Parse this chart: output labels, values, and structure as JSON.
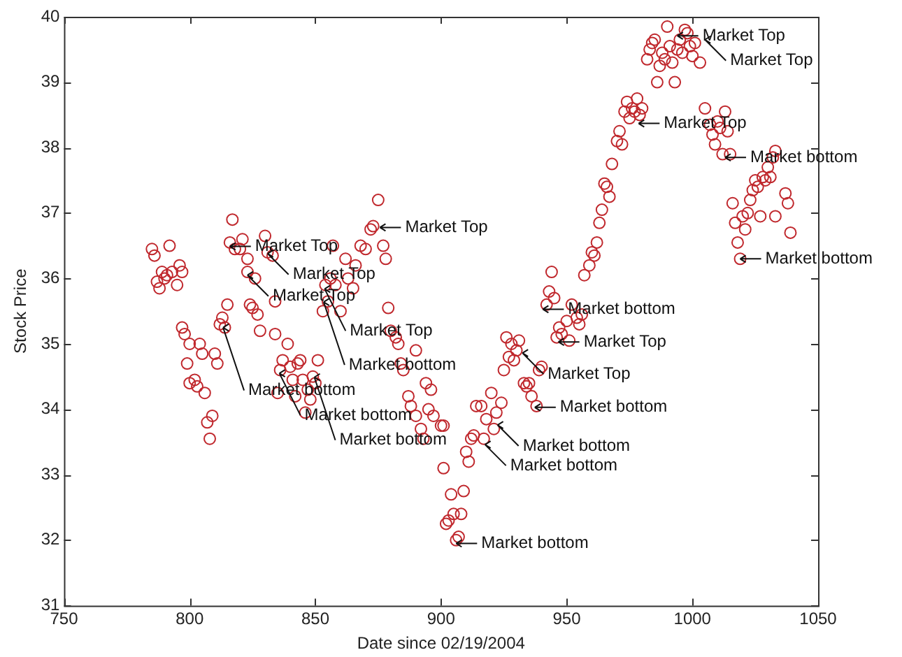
{
  "chart_data": {
    "type": "scatter",
    "xlabel": "Date since 02/19/2004",
    "ylabel": "Stock Price",
    "xlim": [
      750,
      1050
    ],
    "xticks": [
      750,
      800,
      850,
      900,
      950,
      1000,
      1050
    ],
    "ylim": [
      31,
      40
    ],
    "yticks": [
      31,
      32,
      33,
      34,
      35,
      36,
      37,
      38,
      39,
      40
    ],
    "grid": false,
    "legend": false,
    "marker": "circle",
    "series": [
      {
        "color": "#c0282d",
        "x": [
          785,
          786,
          787,
          788,
          789,
          790,
          791,
          792,
          793,
          795,
          796,
          797,
          797,
          798,
          799,
          800,
          800,
          802,
          803,
          804,
          805,
          806,
          807,
          808,
          809,
          810,
          811,
          812,
          813,
          814,
          815,
          816,
          817,
          818,
          820,
          821,
          823,
          823,
          824,
          825,
          826,
          827,
          828,
          830,
          831,
          833,
          834,
          834,
          835,
          836,
          837,
          839,
          840,
          841,
          842,
          843,
          844,
          845,
          846,
          847,
          848,
          849,
          850,
          851,
          853,
          854,
          855,
          856,
          857,
          858,
          860,
          862,
          863,
          865,
          866,
          868,
          870,
          872,
          873,
          875,
          877,
          878,
          879,
          880,
          882,
          883,
          884,
          885,
          887,
          888,
          890,
          890,
          892,
          893,
          894,
          895,
          896,
          897,
          900,
          901,
          901,
          902,
          903,
          904,
          905,
          906,
          907,
          908,
          909,
          910,
          911,
          912,
          913,
          914,
          916,
          917,
          918,
          920,
          921,
          922,
          924,
          925,
          926,
          927,
          928,
          929,
          930,
          931,
          933,
          934,
          935,
          936,
          938,
          939,
          940,
          942,
          943,
          944,
          945,
          946,
          947,
          948,
          950,
          951,
          952,
          954,
          955,
          956,
          957,
          959,
          960,
          961,
          962,
          963,
          964,
          965,
          966,
          967,
          968,
          970,
          971,
          972,
          973,
          974,
          975,
          976,
          977,
          978,
          979,
          980,
          982,
          983,
          984,
          985,
          986,
          987,
          988,
          989,
          990,
          991,
          992,
          993,
          994,
          995,
          996,
          997,
          998,
          999,
          1000,
          1001,
          1003,
          1005,
          1007,
          1008,
          1009,
          1010,
          1011,
          1012,
          1013,
          1014,
          1015,
          1016,
          1017,
          1018,
          1019,
          1020,
          1021,
          1022,
          1023,
          1024,
          1025,
          1026,
          1027,
          1028,
          1029,
          1030,
          1031,
          1032,
          1033,
          1033,
          1037,
          1038,
          1039
        ],
        "values": [
          36.45,
          36.35,
          35.95,
          35.85,
          36.1,
          36.0,
          36.05,
          36.5,
          36.1,
          35.9,
          36.2,
          36.1,
          35.25,
          35.15,
          34.7,
          35.0,
          34.4,
          34.45,
          34.35,
          35.0,
          34.85,
          34.25,
          33.8,
          33.55,
          33.9,
          34.85,
          34.7,
          35.3,
          35.4,
          35.25,
          35.6,
          36.55,
          36.9,
          36.45,
          36.45,
          36.6,
          36.3,
          36.1,
          35.6,
          35.55,
          36.0,
          35.45,
          35.2,
          36.65,
          36.4,
          36.35,
          35.65,
          35.15,
          34.25,
          34.6,
          34.75,
          35.0,
          34.65,
          34.45,
          34.2,
          34.7,
          34.75,
          34.45,
          33.95,
          34.3,
          34.15,
          34.5,
          34.4,
          34.75,
          35.5,
          35.9,
          35.65,
          36.0,
          36.5,
          35.9,
          35.5,
          36.3,
          36.0,
          35.85,
          36.2,
          36.5,
          36.45,
          36.75,
          36.8,
          37.2,
          36.5,
          36.3,
          35.55,
          35.2,
          35.1,
          35.0,
          34.7,
          34.6,
          34.2,
          34.05,
          34.9,
          33.9,
          33.7,
          33.55,
          34.4,
          34.0,
          34.3,
          33.9,
          33.75,
          33.75,
          33.1,
          32.25,
          32.3,
          32.7,
          32.4,
          32.0,
          32.05,
          32.4,
          32.75,
          33.35,
          33.2,
          33.55,
          33.6,
          34.05,
          34.05,
          33.55,
          33.85,
          34.25,
          33.7,
          33.95,
          34.1,
          34.6,
          35.1,
          34.8,
          35.0,
          34.75,
          34.9,
          35.05,
          34.4,
          34.35,
          34.4,
          34.2,
          34.05,
          34.6,
          34.65,
          35.6,
          35.8,
          36.1,
          35.7,
          35.1,
          35.25,
          35.15,
          35.35,
          35.05,
          35.6,
          35.4,
          35.3,
          35.45,
          36.05,
          36.2,
          36.4,
          36.35,
          36.55,
          36.85,
          37.05,
          37.45,
          37.4,
          37.25,
          37.75,
          38.1,
          38.25,
          38.05,
          38.55,
          38.7,
          38.45,
          38.6,
          38.55,
          38.75,
          38.5,
          38.6,
          39.35,
          39.5,
          39.6,
          39.65,
          39.0,
          39.25,
          39.45,
          39.35,
          39.85,
          39.55,
          39.3,
          39.0,
          39.5,
          39.65,
          39.45,
          39.8,
          39.75,
          39.55,
          39.4,
          39.6,
          39.3,
          38.6,
          38.35,
          38.2,
          38.05,
          38.4,
          38.3,
          37.9,
          38.55,
          38.25,
          37.9,
          37.15,
          36.85,
          36.55,
          36.3,
          36.95,
          36.75,
          37.0,
          37.2,
          37.35,
          37.5,
          37.4,
          36.95,
          37.55,
          37.5,
          37.7,
          37.55,
          37.85,
          37.95,
          36.95,
          37.3,
          37.15,
          36.7
        ]
      }
    ],
    "annotations": [
      {
        "text": "Market Top",
        "x": 994,
        "y": 39.71
      },
      {
        "text": "Market Top",
        "x": 1005,
        "y": 39.65
      },
      {
        "text": "Market Top",
        "x": 978.6,
        "y": 38.37
      },
      {
        "text": "Market bottom",
        "x": 1013,
        "y": 37.85
      },
      {
        "text": "Market bottom",
        "x": 1019,
        "y": 36.3
      },
      {
        "text": "Market Top",
        "x": 875.7,
        "y": 36.78
      },
      {
        "text": "Market Top",
        "x": 816,
        "y": 36.49
      },
      {
        "text": "Market Top",
        "x": 831,
        "y": 36.38
      },
      {
        "text": "Market Top",
        "x": 823,
        "y": 36.05
      },
      {
        "text": "Market Top",
        "x": 853.7,
        "y": 35.84
      },
      {
        "text": "Market bottom",
        "x": 853.3,
        "y": 35.64
      },
      {
        "text": "Market bottom",
        "x": 813.3,
        "y": 35.25
      },
      {
        "text": "Market bottom",
        "x": 835.7,
        "y": 34.55
      },
      {
        "text": "Market bottom",
        "x": 849.6,
        "y": 34.49
      },
      {
        "text": "Market bottom",
        "x": 940.5,
        "y": 35.53
      },
      {
        "text": "Market Top",
        "x": 946.7,
        "y": 35.03
      },
      {
        "text": "Market Top",
        "x": 932.4,
        "y": 34.86
      },
      {
        "text": "Market bottom",
        "x": 937.3,
        "y": 34.03
      },
      {
        "text": "Market bottom",
        "x": 922.5,
        "y": 33.76
      },
      {
        "text": "Market bottom",
        "x": 917.5,
        "y": 33.46
      },
      {
        "text": "Market bottom",
        "x": 906,
        "y": 31.95
      }
    ]
  }
}
